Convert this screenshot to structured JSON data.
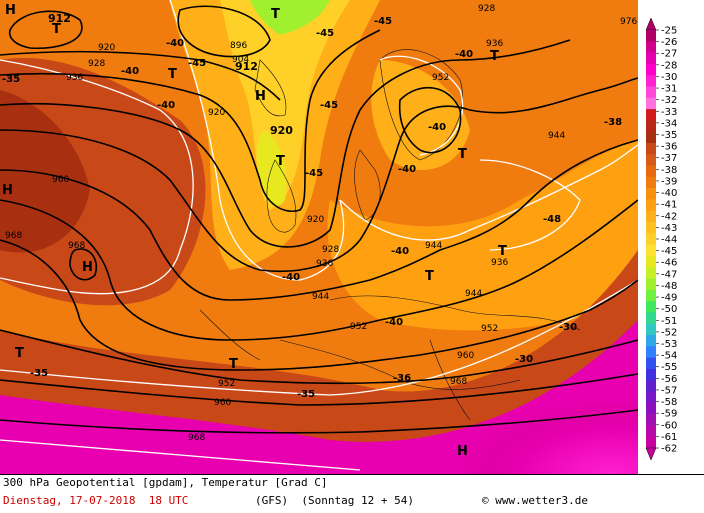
{
  "footer": {
    "title": "300 hPa Geopotential [gpdam], Temperatur [Grad C]",
    "date": "Dienstag, 17-07-2018  18 UTC",
    "model": "(GFS)  (Sonntag 12 + 54)",
    "credit": "www.wetter3.de"
  },
  "legend": {
    "levels": [
      "-25",
      "-26",
      "-27",
      "-28",
      "-30",
      "-31",
      "-32",
      "-33",
      "-34",
      "-35",
      "-36",
      "-37",
      "-38",
      "-39",
      "-40",
      "-41",
      "-42",
      "-43",
      "-44",
      "-45",
      "-46",
      "-47",
      "-48",
      "-49",
      "-50",
      "-51",
      "-52",
      "-53",
      "-54",
      "-55",
      "-56",
      "-57",
      "-58",
      "-59",
      "-60",
      "-61",
      "-62"
    ],
    "colors": [
      "#b00068",
      "#d0008a",
      "#e800b0",
      "#ff00c8",
      "#ff20d0",
      "#ff48d8",
      "#ff70e0",
      "#d01c1c",
      "#b82818",
      "#a83010",
      "#c84818",
      "#d85a18",
      "#e86a10",
      "#f07c10",
      "#f89010",
      "#ffa010",
      "#ffb018",
      "#ffc020",
      "#ffd028",
      "#ffe030",
      "#e8e820",
      "#c8f028",
      "#a0f030",
      "#70f040",
      "#40e860",
      "#30d890",
      "#30c8c0",
      "#30a8e8",
      "#3080ff",
      "#3050f0",
      "#4030e0",
      "#6020d0",
      "#7818c8",
      "#8c10c0",
      "#a010b0",
      "#b808a8",
      "#c800a0"
    ]
  },
  "map": {
    "geopotential_labels": [
      "896",
      "904",
      "912",
      "912",
      "920",
      "920",
      "920",
      "920",
      "928",
      "928",
      "928",
      "936",
      "936",
      "936",
      "936",
      "944",
      "944",
      "944",
      "944",
      "952",
      "952",
      "952",
      "952",
      "960",
      "960",
      "960",
      "968",
      "968",
      "968",
      "968",
      "976"
    ],
    "temperature_labels": [
      "-35",
      "-35",
      "-35",
      "-38",
      "-40",
      "-40",
      "-40",
      "-40",
      "-40",
      "-40",
      "-40",
      "-40",
      "-40",
      "-45",
      "-45",
      "-45",
      "-45",
      "-45",
      "-48",
      "-36",
      "-30",
      "-30"
    ],
    "pressure_centers": [
      "T",
      "T",
      "T",
      "T",
      "T",
      "T",
      "T",
      "T",
      "T",
      "T",
      "H",
      "H",
      "H",
      "H",
      "H"
    ]
  }
}
